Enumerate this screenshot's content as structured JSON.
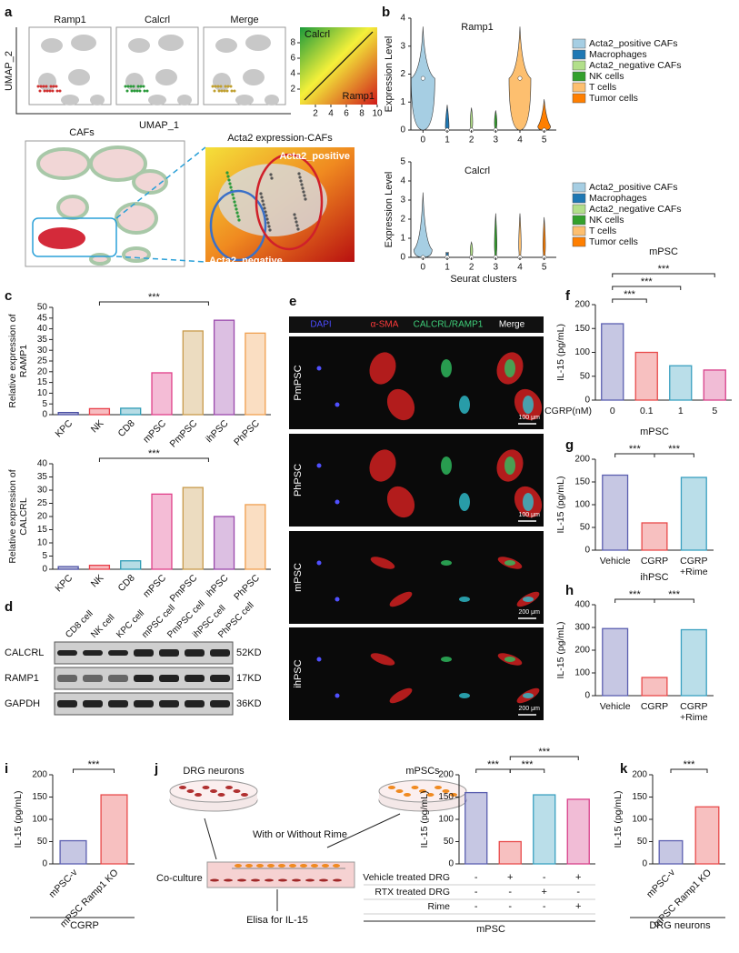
{
  "panel_labels": [
    "a",
    "b",
    "c",
    "d",
    "e",
    "f",
    "g",
    "h",
    "i",
    "j",
    "k"
  ],
  "panel_a": {
    "umap_titles": [
      "Ramp1",
      "Calcrl",
      "Merge"
    ],
    "y_axis": "UMAP_2",
    "x_axis": "UMAP_1",
    "scale_top": "Calcrl",
    "scale_bottom": "Ramp1",
    "scale_xticks": [
      2,
      4,
      6,
      8,
      10
    ],
    "scale_yticks": [
      2,
      4,
      6,
      8
    ],
    "cafs_title": "CAFs",
    "zoom_title": "Acta2 expression-CAFs",
    "positive": "Acta2_positive",
    "negative": "Acta2_negative"
  },
  "panel_b": {
    "plots": [
      {
        "title": "Ramp1",
        "yticks": [
          0,
          1,
          2,
          3,
          4
        ]
      },
      {
        "title": "Calcrl",
        "yticks": [
          0,
          1,
          2,
          3,
          4,
          5
        ]
      }
    ],
    "ylabel": "Expression Level",
    "clusters": [
      0,
      1,
      2,
      3,
      4,
      5
    ],
    "xlabel": "Seurat clusters",
    "legend": [
      {
        "name": "Acta2_positive CAFs",
        "color": "#a6cee3"
      },
      {
        "name": "Macrophages",
        "color": "#1f78b4"
      },
      {
        "name": "Acta2_negative CAFs",
        "color": "#b2df8a"
      },
      {
        "name": "NK cells",
        "color": "#33a02c"
      },
      {
        "name": "T cells",
        "color": "#fdbf6f"
      },
      {
        "name": "Tumor cells",
        "color": "#ff7f00"
      }
    ]
  },
  "panel_d": {
    "columns": [
      "CD8 cell",
      "NK cell",
      "KPC cell",
      "mPSC cell",
      "PmPSC cell",
      "ihPSC cell",
      "PhPSC cell"
    ],
    "rows": [
      {
        "name": "CALCRL",
        "size": "52KD"
      },
      {
        "name": "RAMP1",
        "size": "17KD"
      },
      {
        "name": "GAPDH",
        "size": "36KD"
      }
    ]
  },
  "panel_e": {
    "channels": [
      {
        "label": "DAPI",
        "color": "#4b4bff"
      },
      {
        "label": "α-SMA",
        "color": "#ff3b3b"
      },
      {
        "label": "CALCRL/RAMP1",
        "color": "#3fd07a"
      },
      {
        "label": "Merge",
        "color": "#ffffff"
      }
    ],
    "rows": [
      {
        "name": "PmPSC",
        "scale_bar": "100 μm"
      },
      {
        "name": "PhPSC",
        "scale_bar": "100 μm"
      },
      {
        "name": "mPSC",
        "scale_bar": "200 μm"
      },
      {
        "name": "ihPSC",
        "scale_bar": "200 μm"
      }
    ]
  },
  "panel_j": {
    "dish_left": "DRG neurons",
    "dish_right": "mPSCs",
    "treatment": "With or Without Rime",
    "coculture": "Co-culture",
    "assay": "Elisa for IL-15"
  },
  "chart_data": [
    {
      "type": "bar",
      "ylabel": "Relative expression of RAMP1",
      "categories": [
        "KPC",
        "NK",
        "CD8",
        "mPSC",
        "PmPSC",
        "ihPSC",
        "PhPSC"
      ],
      "values": [
        1,
        2.8,
        3,
        19.5,
        39,
        44,
        38
      ],
      "colors": [
        "#4a4fa3",
        "#e8404a",
        "#2d9bb5",
        "#e0408a",
        "#c89a4a",
        "#9a48ac",
        "#f0a050"
      ],
      "ylim": [
        0,
        50
      ],
      "yticks": [
        0,
        5,
        10,
        15,
        20,
        25,
        30,
        35,
        40,
        45,
        50
      ],
      "significance": [
        "***"
      ]
    },
    {
      "type": "bar",
      "ylabel": "Relative expression of CALCRL",
      "categories": [
        "KPC",
        "NK",
        "CD8",
        "mPSC",
        "PmPSC",
        "ihPSC",
        "PhPSC"
      ],
      "values": [
        1,
        1.5,
        3.2,
        28.5,
        31,
        20,
        24.5
      ],
      "colors": [
        "#4a4fa3",
        "#e8404a",
        "#2d9bb5",
        "#e0408a",
        "#c89a4a",
        "#9a48ac",
        "#f0a050"
      ],
      "ylim": [
        0,
        40
      ],
      "yticks": [
        0,
        5,
        10,
        15,
        20,
        25,
        30,
        35,
        40
      ],
      "significance": [
        "***"
      ]
    },
    {
      "type": "bar",
      "title": "mPSC",
      "ylabel": "IL-15 (pg/mL)",
      "xlabel": "CGRP(nM)",
      "categories": [
        "0",
        "0.1",
        "1",
        "5"
      ],
      "values": [
        160,
        100,
        72,
        63
      ],
      "colors": [
        "#5b5fb0",
        "#e84a4a",
        "#3aa0c0",
        "#d8408a"
      ],
      "ylim": [
        0,
        200
      ],
      "yticks": [
        0,
        50,
        100,
        150,
        200
      ],
      "significance": [
        "***",
        "***",
        "***"
      ]
    },
    {
      "type": "bar",
      "title": "mPSC",
      "ylabel": "IL-15 (pg/mL)",
      "categories": [
        "Vehicle",
        "CGRP",
        "CGRP +Rime"
      ],
      "values": [
        165,
        60,
        160
      ],
      "colors": [
        "#5b5fb0",
        "#e84a4a",
        "#3aa0c0"
      ],
      "ylim": [
        0,
        200
      ],
      "yticks": [
        0,
        50,
        100,
        150,
        200
      ],
      "significance": [
        "***",
        "***"
      ]
    },
    {
      "type": "bar",
      "title": "ihPSC",
      "ylabel": "IL-15 (pg/mL)",
      "categories": [
        "Vehicle",
        "CGRP",
        "CGRP +Rime"
      ],
      "values": [
        295,
        80,
        290
      ],
      "colors": [
        "#5b5fb0",
        "#e84a4a",
        "#3aa0c0"
      ],
      "ylim": [
        0,
        400
      ],
      "yticks": [
        0,
        100,
        200,
        300,
        400
      ],
      "significance": [
        "***",
        "***"
      ]
    },
    {
      "type": "bar",
      "ylabel": "IL-15 (pg/mL)",
      "categories": [
        "mPSC-v",
        "mPSC Ramp1 KO"
      ],
      "footer": "CGRP",
      "values": [
        52,
        155
      ],
      "colors": [
        "#5b5fb0",
        "#e84a4a"
      ],
      "ylim": [
        0,
        200
      ],
      "yticks": [
        0,
        50,
        100,
        150,
        200
      ],
      "significance": [
        "***"
      ]
    },
    {
      "type": "bar",
      "ylabel": "IL-15 (pg/mL)",
      "footer": "mPSC",
      "conditions": [
        {
          "name": "Vehicle treated DRG",
          "values": [
            "-",
            "+",
            "-",
            "+"
          ]
        },
        {
          "name": "RTX treated DRG",
          "values": [
            "-",
            "-",
            "+",
            "-"
          ]
        },
        {
          "name": "Rime",
          "values": [
            "-",
            "-",
            "-",
            "+"
          ]
        }
      ],
      "values": [
        160,
        50,
        155,
        145
      ],
      "colors": [
        "#5b5fb0",
        "#e84a4a",
        "#3aa0c0",
        "#d8408a"
      ],
      "ylim": [
        0,
        200
      ],
      "yticks": [
        0,
        50,
        100,
        150,
        200
      ],
      "significance": [
        "***",
        "***",
        "***"
      ]
    },
    {
      "type": "bar",
      "ylabel": "IL-15 (pg/mL)",
      "categories": [
        "mPSC-v",
        "mPSC Ramp1 KO"
      ],
      "footer": "DRG neurons",
      "values": [
        52,
        128
      ],
      "colors": [
        "#5b5fb0",
        "#e84a4a"
      ],
      "ylim": [
        0,
        200
      ],
      "yticks": [
        0,
        50,
        100,
        150,
        200
      ],
      "significance": [
        "***"
      ]
    }
  ]
}
